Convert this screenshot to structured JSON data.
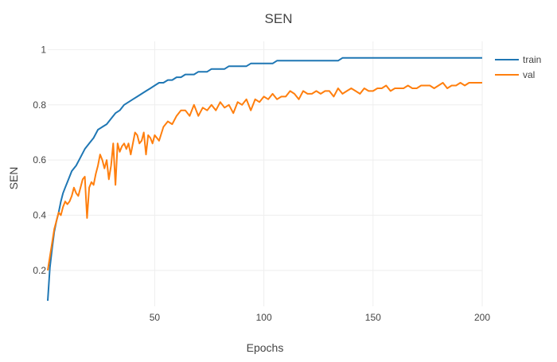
{
  "colors": {
    "train": "#1f77b4",
    "val": "#ff7f0e",
    "grid": "#eeeeee",
    "text": "#444444"
  },
  "chart_data": {
    "type": "line",
    "title": "SEN",
    "xlabel": "Epochs",
    "ylabel": "SEN",
    "xlim": [
      1,
      200
    ],
    "ylim": [
      0.07,
      1.03
    ],
    "xticks": [
      50,
      100,
      150,
      200
    ],
    "yticks": [
      0.2,
      0.4,
      0.6,
      0.8,
      1
    ],
    "grid": true,
    "legend_position": "top-right",
    "series": [
      {
        "name": "train",
        "color": "#1f77b4",
        "x": [
          1,
          2,
          3,
          4,
          5,
          6,
          7,
          8,
          9,
          10,
          12,
          14,
          16,
          18,
          20,
          22,
          24,
          26,
          28,
          30,
          32,
          34,
          36,
          38,
          40,
          42,
          44,
          46,
          48,
          50,
          52,
          54,
          56,
          58,
          60,
          62,
          64,
          66,
          68,
          70,
          72,
          74,
          76,
          78,
          80,
          82,
          84,
          86,
          88,
          90,
          92,
          94,
          96,
          98,
          100,
          102,
          104,
          106,
          108,
          110,
          112,
          114,
          116,
          118,
          120,
          122,
          124,
          126,
          128,
          130,
          132,
          134,
          136,
          138,
          140,
          142,
          144,
          146,
          148,
          150,
          152,
          154,
          156,
          158,
          160,
          162,
          164,
          166,
          168,
          170,
          172,
          174,
          176,
          178,
          180,
          182,
          184,
          186,
          188,
          190,
          192,
          194,
          196,
          198,
          200
        ],
        "values": [
          0.09,
          0.21,
          0.28,
          0.34,
          0.38,
          0.41,
          0.45,
          0.48,
          0.5,
          0.52,
          0.56,
          0.58,
          0.61,
          0.64,
          0.66,
          0.68,
          0.71,
          0.72,
          0.73,
          0.75,
          0.77,
          0.78,
          0.8,
          0.81,
          0.82,
          0.83,
          0.84,
          0.85,
          0.86,
          0.87,
          0.88,
          0.88,
          0.89,
          0.89,
          0.9,
          0.9,
          0.91,
          0.91,
          0.91,
          0.92,
          0.92,
          0.92,
          0.93,
          0.93,
          0.93,
          0.93,
          0.94,
          0.94,
          0.94,
          0.94,
          0.94,
          0.95,
          0.95,
          0.95,
          0.95,
          0.95,
          0.95,
          0.96,
          0.96,
          0.96,
          0.96,
          0.96,
          0.96,
          0.96,
          0.96,
          0.96,
          0.96,
          0.96,
          0.96,
          0.96,
          0.96,
          0.96,
          0.97,
          0.97,
          0.97,
          0.97,
          0.97,
          0.97,
          0.97,
          0.97,
          0.97,
          0.97,
          0.97,
          0.97,
          0.97,
          0.97,
          0.97,
          0.97,
          0.97,
          0.97,
          0.97,
          0.97,
          0.97,
          0.97,
          0.97,
          0.97,
          0.97,
          0.97,
          0.97,
          0.97,
          0.97,
          0.97,
          0.97,
          0.97,
          0.97
        ]
      },
      {
        "name": "val",
        "color": "#ff7f0e",
        "x": [
          1,
          2,
          3,
          4,
          5,
          6,
          7,
          8,
          9,
          10,
          11,
          12,
          13,
          14,
          15,
          16,
          17,
          18,
          19,
          20,
          21,
          22,
          23,
          24,
          25,
          26,
          27,
          28,
          29,
          30,
          31,
          32,
          33,
          34,
          35,
          36,
          37,
          38,
          39,
          40,
          41,
          42,
          43,
          44,
          45,
          46,
          47,
          48,
          49,
          50,
          52,
          54,
          56,
          58,
          60,
          62,
          64,
          66,
          68,
          70,
          72,
          74,
          76,
          78,
          80,
          82,
          84,
          86,
          88,
          90,
          92,
          94,
          96,
          98,
          100,
          102,
          104,
          106,
          108,
          110,
          112,
          114,
          116,
          118,
          120,
          122,
          124,
          126,
          128,
          130,
          132,
          134,
          136,
          138,
          140,
          142,
          144,
          146,
          148,
          150,
          152,
          154,
          156,
          158,
          160,
          162,
          164,
          166,
          168,
          170,
          172,
          174,
          176,
          178,
          180,
          182,
          184,
          186,
          188,
          190,
          192,
          194,
          196,
          198,
          200
        ],
        "values": [
          0.2,
          0.25,
          0.3,
          0.35,
          0.38,
          0.41,
          0.4,
          0.43,
          0.45,
          0.44,
          0.45,
          0.47,
          0.5,
          0.48,
          0.47,
          0.5,
          0.53,
          0.54,
          0.39,
          0.5,
          0.52,
          0.51,
          0.55,
          0.58,
          0.62,
          0.6,
          0.57,
          0.6,
          0.53,
          0.58,
          0.66,
          0.51,
          0.66,
          0.63,
          0.65,
          0.66,
          0.64,
          0.66,
          0.62,
          0.66,
          0.7,
          0.69,
          0.66,
          0.67,
          0.7,
          0.62,
          0.69,
          0.68,
          0.66,
          0.69,
          0.67,
          0.72,
          0.74,
          0.73,
          0.76,
          0.78,
          0.78,
          0.76,
          0.8,
          0.76,
          0.79,
          0.78,
          0.8,
          0.78,
          0.81,
          0.79,
          0.8,
          0.77,
          0.81,
          0.8,
          0.82,
          0.78,
          0.82,
          0.81,
          0.83,
          0.82,
          0.84,
          0.82,
          0.83,
          0.83,
          0.85,
          0.84,
          0.82,
          0.85,
          0.84,
          0.84,
          0.85,
          0.84,
          0.85,
          0.85,
          0.83,
          0.86,
          0.84,
          0.85,
          0.86,
          0.85,
          0.84,
          0.86,
          0.85,
          0.85,
          0.86,
          0.86,
          0.87,
          0.85,
          0.86,
          0.86,
          0.86,
          0.87,
          0.86,
          0.86,
          0.87,
          0.87,
          0.87,
          0.86,
          0.87,
          0.88,
          0.86,
          0.87,
          0.87,
          0.88,
          0.87,
          0.88,
          0.88,
          0.88,
          0.88
        ]
      }
    ]
  }
}
